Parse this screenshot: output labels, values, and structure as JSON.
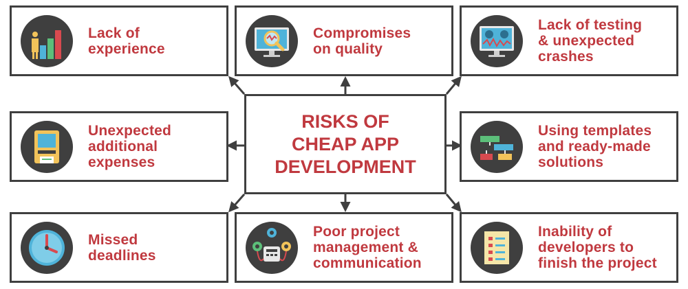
{
  "title": "RISKS OF\nCHEAP APP\nDEVELOPMENT",
  "items": [
    {
      "label": "Lack of\nexperience",
      "icon": "growth-chart-icon"
    },
    {
      "label": "Compromises\non quality",
      "icon": "magnifier-monitor-icon"
    },
    {
      "label": "Lack of testing\n& unexpected\ncrashes",
      "icon": "dashboard-monitor-icon"
    },
    {
      "label": "Unexpected\nadditional\nexpenses",
      "icon": "atm-machine-icon"
    },
    {
      "label": "Using templates\nand ready-made\nsolutions",
      "icon": "flowchart-icon"
    },
    {
      "label": "Missed\ndeadlines",
      "icon": "clock-icon"
    },
    {
      "label": "Poor project\nmanagement &\ncommunication",
      "icon": "phone-network-icon"
    },
    {
      "label": "Inability of\ndevelopers to\nfinish the project",
      "icon": "checklist-icon"
    }
  ],
  "colors": {
    "accent": "#c0393f",
    "border": "#3f3f3f",
    "icon_bg": "#3f3f3f"
  }
}
